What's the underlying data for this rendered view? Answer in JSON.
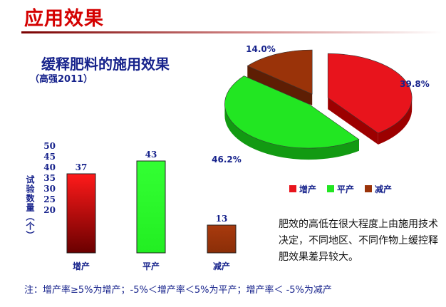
{
  "page": {
    "title": "应用效果",
    "section_title": "缓释肥料的施用效果",
    "section_subtitle": "（高强2011）",
    "note": "肥效的高低在很大程度上由施用技术决定，不同地区、不同作物上缓控释肥效果差异较大。",
    "footnote": "注：增产率≥5%为增产；-5%＜增产率＜5%为平产；增产率＜ -5%为减产"
  },
  "chart_data": [
    {
      "type": "bar",
      "categories": [
        "增产",
        "平产",
        "减产"
      ],
      "values": [
        37,
        43,
        13
      ],
      "data_labels": [
        "37",
        "43",
        "13"
      ],
      "ylabel": "试验数量（个）",
      "ylim": [
        0,
        50
      ],
      "yticks": [
        20,
        25,
        30,
        35,
        40,
        45,
        50
      ],
      "colors": [
        "#e8141c",
        "#22e622",
        "#9a3309"
      ],
      "grid": false
    },
    {
      "type": "pie",
      "categories": [
        "增产",
        "平产",
        "减产"
      ],
      "values": [
        39.8,
        46.2,
        14.0
      ],
      "data_labels": [
        "39.8%",
        "46.2%",
        "14.0%"
      ],
      "colors": [
        "#e8141c",
        "#22e622",
        "#9a3309"
      ],
      "legend": [
        "增产",
        "平产",
        "减产"
      ],
      "legend_position": "bottom",
      "style": "3d-exploded"
    }
  ]
}
